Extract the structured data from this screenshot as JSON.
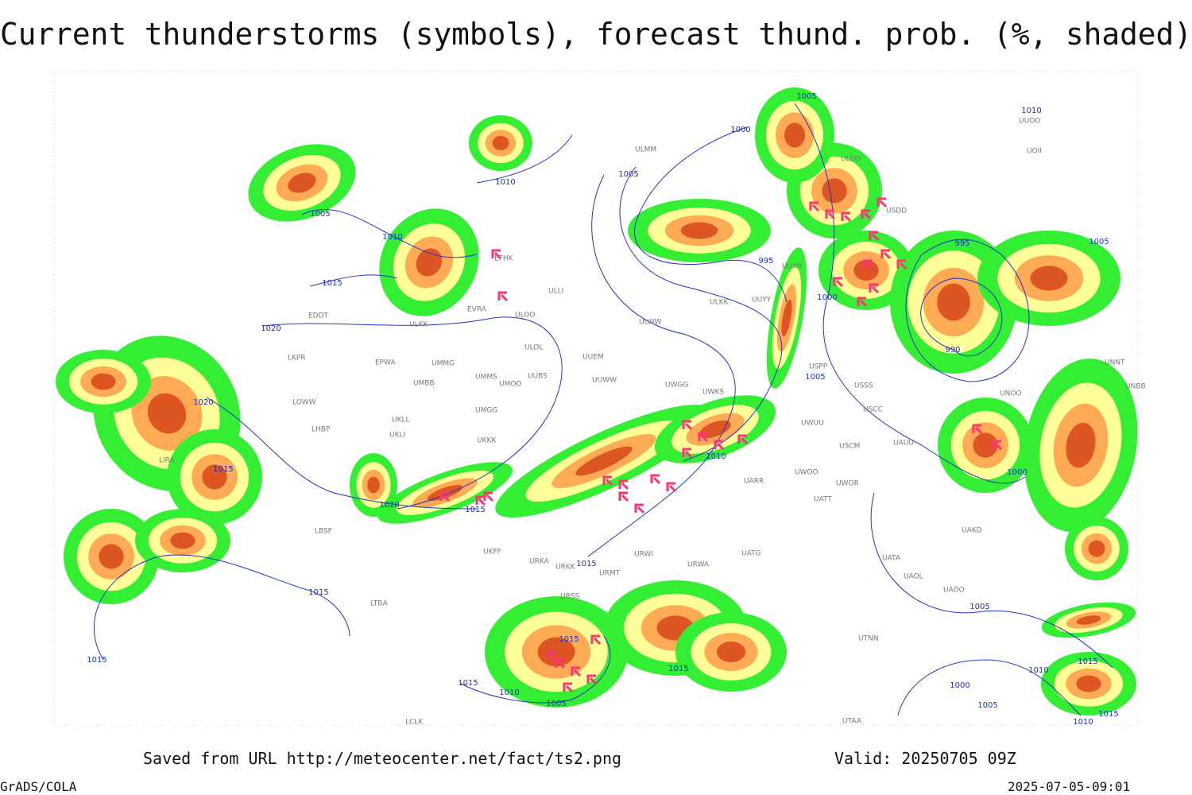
{
  "header": {
    "title": "Current thunderstorms (symbols), forecast thund. prob. (%, shaded)"
  },
  "footer": {
    "source": "Saved from URL http://meteocenter.net/fact/ts2.png",
    "valid": "Valid: 20250705 09Z",
    "software": "GrADS/COLA",
    "timestamp": "2025-07-05-09:01"
  },
  "isobar_labels": [
    "1005",
    "1010",
    "1000",
    "1005",
    "1010",
    "1005",
    "1010",
    "995",
    "995",
    "1005",
    "1015",
    "1020",
    "1000",
    "990",
    "1005",
    "1020",
    "1010",
    "1015",
    "1000",
    "1020",
    "1015",
    "1015",
    "1015",
    "1005",
    "1015",
    "1015",
    "1015",
    "1015",
    "1010",
    "1015",
    "1000",
    "1010",
    "1005",
    "1005",
    "1015",
    "1010"
  ],
  "station_labels": [
    "EFHK",
    "EVRA",
    "ULOO",
    "ULLI",
    "ULKK",
    "EDDT",
    "ULOL",
    "UUEM",
    "ULWW",
    "ULKK",
    "UUYY",
    "UUYH",
    "EPWA",
    "UMMG",
    "LKPR",
    "UMMS",
    "UMOO",
    "UUBS",
    "UUWW",
    "UWGG",
    "UWKS",
    "USPP",
    "USSS",
    "USCC",
    "UNNT",
    "UNBB",
    "UNOO",
    "LOWW",
    "UMBB",
    "UMGG",
    "UKLL",
    "UKLI",
    "UKKK",
    "LHBP",
    "LIRA",
    "UWUU",
    "USCM",
    "UAUU",
    "UARR",
    "UWOO",
    "UWOR",
    "UATT",
    "UAKD",
    "LBSF",
    "UKFF",
    "URKA",
    "URKK",
    "URWI",
    "UATG",
    "URMT",
    "URWA",
    "UATA",
    "UAOL",
    "UAOO",
    "LTBA",
    "URSS",
    "UTNN",
    "UUOO",
    "UOII",
    "ULMM",
    "ULDD",
    "USDD",
    "UTAA",
    "LCLK"
  ]
}
